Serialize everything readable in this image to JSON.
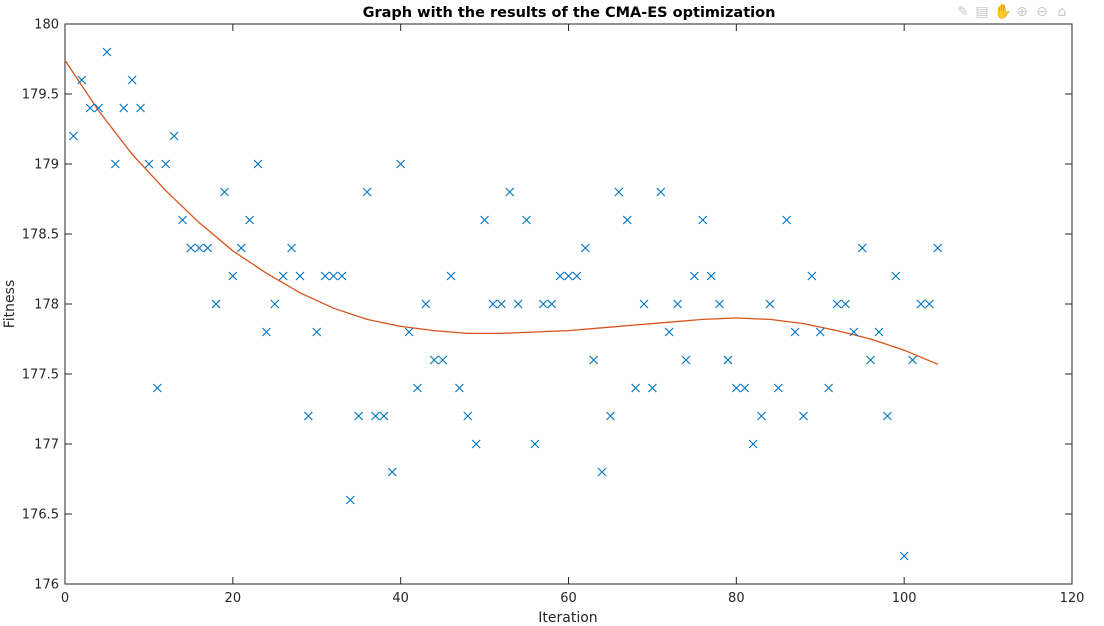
{
  "chart_data": {
    "type": "scatter",
    "title": "Graph with the results of the CMA-ES optimization",
    "xlabel": "Iteration",
    "ylabel": "Fitness",
    "xlim": [
      0,
      120
    ],
    "ylim": [
      176,
      180
    ],
    "xticks": [
      0,
      20,
      40,
      60,
      80,
      100,
      120
    ],
    "yticks": [
      176,
      176.5,
      177,
      177.5,
      178,
      178.5,
      179,
      179.5,
      180
    ],
    "grid": false,
    "legend": "none",
    "series": [
      {
        "marker": "x",
        "color": "#0072BD",
        "x": [
          1,
          2,
          3,
          4,
          5,
          6,
          7,
          8,
          9,
          10,
          11,
          12,
          13,
          14,
          15,
          16,
          17,
          18,
          19,
          20,
          21,
          22,
          23,
          24,
          25,
          26,
          27,
          28,
          29,
          30,
          31,
          32,
          33,
          34,
          35,
          36,
          37,
          38,
          39,
          40,
          41,
          42,
          43,
          44,
          45,
          46,
          47,
          48,
          49,
          50,
          51,
          52,
          53,
          54,
          55,
          56,
          57,
          58,
          59,
          60,
          61,
          62,
          63,
          64,
          65,
          66,
          67,
          68,
          69,
          70,
          71,
          72,
          73,
          74,
          75,
          76,
          77,
          78,
          79,
          80,
          81,
          82,
          83,
          84,
          85,
          86,
          87,
          88,
          89,
          90,
          91,
          92,
          93,
          94,
          95,
          96,
          97,
          98,
          99,
          100,
          101,
          102,
          103,
          104
        ],
        "y": [
          179.2,
          179.6,
          179.4,
          179.4,
          179.8,
          179.0,
          179.4,
          179.6,
          179.4,
          179.0,
          177.4,
          179.0,
          179.2,
          178.6,
          178.4,
          178.4,
          178.4,
          178.0,
          178.8,
          178.2,
          178.4,
          178.6,
          179.0,
          177.8,
          178.0,
          178.2,
          178.4,
          178.2,
          177.2,
          177.8,
          178.2,
          178.2,
          178.2,
          176.6,
          177.2,
          178.8,
          177.2,
          177.2,
          176.8,
          179.0,
          177.8,
          177.4,
          178.0,
          177.6,
          177.6,
          178.2,
          177.4,
          177.2,
          177.0,
          178.6,
          178.0,
          178.0,
          178.8,
          178.0,
          178.6,
          177.0,
          178.0,
          178.0,
          178.2,
          178.2,
          178.2,
          178.4,
          177.6,
          176.8,
          177.2,
          178.8,
          178.6,
          177.4,
          178.0,
          177.4,
          178.8,
          177.8,
          178.0,
          177.6,
          178.2,
          178.6,
          178.2,
          178.0,
          177.6,
          177.4,
          177.4,
          177.0,
          177.2,
          178.0,
          177.4,
          178.6,
          177.8,
          177.2,
          178.2,
          177.8,
          177.4,
          178.0,
          178.0,
          177.8,
          178.4,
          177.6,
          177.8,
          177.2,
          178.2,
          176.2,
          177.6,
          178.0,
          178.0,
          178.4
        ]
      },
      {
        "marker": "line",
        "color": "#D95319",
        "x": [
          0,
          4,
          8,
          12,
          16,
          20,
          24,
          28,
          32,
          36,
          40,
          44,
          48,
          52,
          56,
          60,
          64,
          68,
          72,
          76,
          80,
          84,
          88,
          92,
          96,
          100,
          104
        ],
        "y": [
          179.74,
          179.38,
          179.07,
          178.81,
          178.58,
          178.38,
          178.22,
          178.08,
          177.97,
          177.89,
          177.84,
          177.81,
          177.79,
          177.79,
          177.8,
          177.81,
          177.83,
          177.85,
          177.87,
          177.89,
          177.9,
          177.89,
          177.86,
          177.81,
          177.75,
          177.67,
          177.57
        ]
      }
    ]
  },
  "toolbar": {
    "icons": [
      "brush-icon",
      "data-tips-icon",
      "pan-icon",
      "zoom-in-icon",
      "zoom-out-icon",
      "home-icon"
    ]
  }
}
